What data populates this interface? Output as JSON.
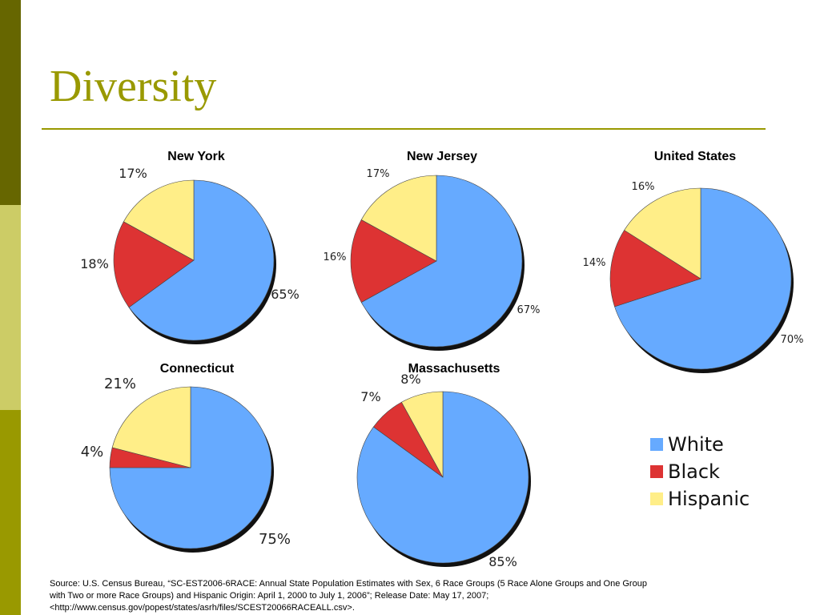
{
  "slide": {
    "title": "Diversity",
    "source": "Source: U.S. Census Bureau, “SC-EST2006-6RACE: Annual State Population Estimates with Sex, 6 Race Groups (5 Race Alone Groups and One Group with Two or more Race Groups) and Hispanic Origin: April 1, 2000 to July 1, 2006”; Release Date: May 17, 2007; <http://www.census.gov/popest/states/asrh/files/SCEST20066RACEALL.csv>."
  },
  "legend": {
    "placement": "bottom-right",
    "items": [
      {
        "label": "White",
        "color": "#66aaff"
      },
      {
        "label": "Black",
        "color": "#dd3333"
      },
      {
        "label": "Hispanic",
        "color": "#ffee88"
      }
    ]
  },
  "chart_data": [
    {
      "type": "pie",
      "title": "New York",
      "categories": [
        "White",
        "Black",
        "Hispanic"
      ],
      "values": [
        65,
        18,
        17
      ],
      "labels": [
        "65%",
        "18%",
        "17%"
      ]
    },
    {
      "type": "pie",
      "title": "New Jersey",
      "categories": [
        "White",
        "Black",
        "Hispanic"
      ],
      "values": [
        67,
        16,
        17
      ],
      "labels": [
        "67%",
        "16%",
        "17%"
      ]
    },
    {
      "type": "pie",
      "title": "United States",
      "categories": [
        "White",
        "Black",
        "Hispanic"
      ],
      "values": [
        70,
        14,
        16
      ],
      "labels": [
        "70%",
        "14%",
        "16%"
      ]
    },
    {
      "type": "pie",
      "title": "Connecticut",
      "categories": [
        "White",
        "Black",
        "Hispanic"
      ],
      "values": [
        75,
        4,
        21
      ],
      "labels": [
        "75%",
        "4%",
        "21%"
      ]
    },
    {
      "type": "pie",
      "title": "Massachusetts",
      "categories": [
        "White",
        "Black",
        "Hispanic"
      ],
      "values": [
        85,
        7,
        8
      ],
      "labels": [
        "85%",
        "7%",
        "8%"
      ]
    }
  ]
}
